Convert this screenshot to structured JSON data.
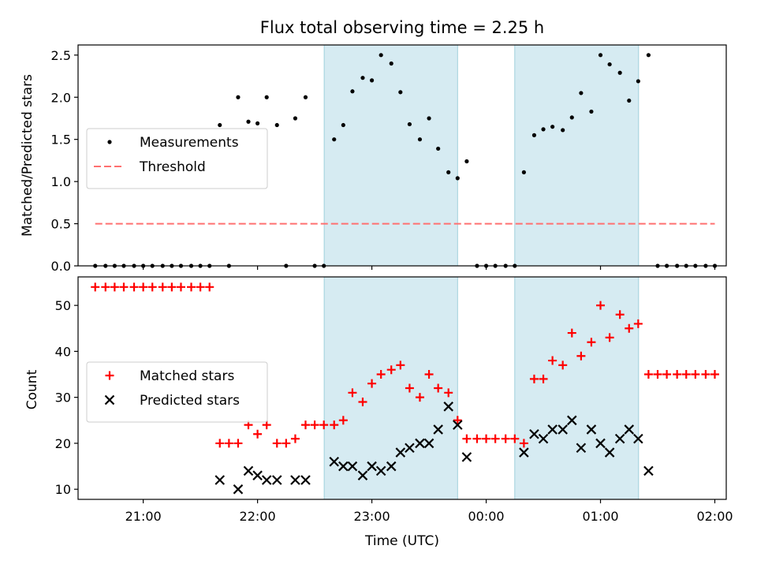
{
  "chart_data": {
    "title": "Flux total observing time = 2.25 h",
    "xlabel": "Time (UTC)",
    "x_unit": "UTC time, hours after 00:00 of the first night (values above 24 are the following day)",
    "xlim": [
      20.43,
      26.1
    ],
    "x_ticks": [
      {
        "value": 21,
        "label": "21:00"
      },
      {
        "value": 22,
        "label": "22:00"
      },
      {
        "value": 23,
        "label": "23:00"
      },
      {
        "value": 24,
        "label": "00:00"
      },
      {
        "value": 25,
        "label": "01:00"
      },
      {
        "value": 26,
        "label": "02:00"
      }
    ],
    "shaded_intervals": [
      {
        "start": 22.583,
        "end": 23.75,
        "color": "#add8e6"
      },
      {
        "start": 24.25,
        "end": 25.333,
        "color": "#add8e6"
      }
    ],
    "panels": [
      {
        "type": "scatter",
        "ylabel": "Matched/Predicted stars",
        "ylim": [
          0,
          2.62
        ],
        "y_ticks": [
          "0.0",
          "0.5",
          "1.0",
          "1.5",
          "2.0",
          "2.5"
        ],
        "legend_position": "center-left",
        "series": [
          {
            "name": "Measurements",
            "marker": "dot",
            "color": "#000000",
            "points": [
              [
                20.58,
                0
              ],
              [
                20.67,
                0
              ],
              [
                20.75,
                0
              ],
              [
                20.83,
                0
              ],
              [
                20.92,
                0
              ],
              [
                21.0,
                0
              ],
              [
                21.08,
                0
              ],
              [
                21.17,
                0
              ],
              [
                21.25,
                0
              ],
              [
                21.33,
                0
              ],
              [
                21.42,
                0
              ],
              [
                21.5,
                0
              ],
              [
                21.58,
                0
              ],
              [
                21.67,
                1.67
              ],
              [
                21.75,
                0
              ],
              [
                21.83,
                2.0
              ],
              [
                21.92,
                1.71
              ],
              [
                22.0,
                1.69
              ],
              [
                22.08,
                2.0
              ],
              [
                22.17,
                1.67
              ],
              [
                22.25,
                0
              ],
              [
                22.33,
                1.75
              ],
              [
                22.42,
                2.0
              ],
              [
                22.5,
                0
              ],
              [
                22.58,
                0
              ],
              [
                22.67,
                1.5
              ],
              [
                22.75,
                1.67
              ],
              [
                22.83,
                2.07
              ],
              [
                22.92,
                2.23
              ],
              [
                23.0,
                2.2
              ],
              [
                23.08,
                2.5
              ],
              [
                23.17,
                2.4
              ],
              [
                23.25,
                2.06
              ],
              [
                23.33,
                1.68
              ],
              [
                23.42,
                1.5
              ],
              [
                23.5,
                1.75
              ],
              [
                23.58,
                1.39
              ],
              [
                23.67,
                1.11
              ],
              [
                23.75,
                1.04
              ],
              [
                23.83,
                1.24
              ],
              [
                23.92,
                0
              ],
              [
                24.0,
                0
              ],
              [
                24.08,
                0
              ],
              [
                24.17,
                0
              ],
              [
                24.25,
                0
              ],
              [
                24.33,
                1.11
              ],
              [
                24.42,
                1.55
              ],
              [
                24.5,
                1.62
              ],
              [
                24.58,
                1.65
              ],
              [
                24.67,
                1.61
              ],
              [
                24.75,
                1.76
              ],
              [
                24.83,
                2.05
              ],
              [
                24.92,
                1.83
              ],
              [
                25.0,
                2.5
              ],
              [
                25.08,
                2.39
              ],
              [
                25.17,
                2.29
              ],
              [
                25.25,
                1.96
              ],
              [
                25.33,
                2.19
              ],
              [
                25.42,
                2.5
              ],
              [
                25.5,
                0
              ],
              [
                25.58,
                0
              ],
              [
                25.67,
                0
              ],
              [
                25.75,
                0
              ],
              [
                25.83,
                0
              ],
              [
                25.92,
                0
              ],
              [
                26.0,
                0
              ]
            ]
          },
          {
            "name": "Threshold",
            "type": "line",
            "style": "dashed",
            "color": "#ff7070",
            "points": [
              [
                20.58,
                0.5
              ],
              [
                26.0,
                0.5
              ]
            ]
          }
        ]
      },
      {
        "type": "scatter",
        "ylabel": "Count",
        "ylim": [
          7.8,
          56.2
        ],
        "y_ticks": [
          "10",
          "20",
          "30",
          "40",
          "50"
        ],
        "legend_position": "center-left",
        "series": [
          {
            "name": "Matched stars",
            "marker": "plus",
            "color": "#ff0000",
            "points": [
              [
                20.58,
                54
              ],
              [
                20.67,
                54
              ],
              [
                20.75,
                54
              ],
              [
                20.83,
                54
              ],
              [
                20.92,
                54
              ],
              [
                21.0,
                54
              ],
              [
                21.08,
                54
              ],
              [
                21.17,
                54
              ],
              [
                21.25,
                54
              ],
              [
                21.33,
                54
              ],
              [
                21.42,
                54
              ],
              [
                21.5,
                54
              ],
              [
                21.58,
                54
              ],
              [
                21.67,
                20
              ],
              [
                21.75,
                20
              ],
              [
                21.83,
                20
              ],
              [
                21.92,
                24
              ],
              [
                22.0,
                22
              ],
              [
                22.08,
                24
              ],
              [
                22.17,
                20
              ],
              [
                22.25,
                20
              ],
              [
                22.33,
                21
              ],
              [
                22.42,
                24
              ],
              [
                22.5,
                24
              ],
              [
                22.58,
                24
              ],
              [
                22.67,
                24
              ],
              [
                22.75,
                25
              ],
              [
                22.83,
                31
              ],
              [
                22.92,
                29
              ],
              [
                23.0,
                33
              ],
              [
                23.08,
                35
              ],
              [
                23.17,
                36
              ],
              [
                23.25,
                37
              ],
              [
                23.33,
                32
              ],
              [
                23.42,
                30
              ],
              [
                23.5,
                35
              ],
              [
                23.58,
                32
              ],
              [
                23.67,
                31
              ],
              [
                23.75,
                25
              ],
              [
                23.83,
                21
              ],
              [
                23.92,
                21
              ],
              [
                24.0,
                21
              ],
              [
                24.08,
                21
              ],
              [
                24.17,
                21
              ],
              [
                24.25,
                21
              ],
              [
                24.33,
                20
              ],
              [
                24.42,
                34
              ],
              [
                24.5,
                34
              ],
              [
                24.58,
                38
              ],
              [
                24.67,
                37
              ],
              [
                24.75,
                44
              ],
              [
                24.83,
                39
              ],
              [
                24.92,
                42
              ],
              [
                25.0,
                50
              ],
              [
                25.08,
                43
              ],
              [
                25.17,
                48
              ],
              [
                25.25,
                45
              ],
              [
                25.33,
                46
              ],
              [
                25.42,
                35
              ],
              [
                25.5,
                35
              ],
              [
                25.58,
                35
              ],
              [
                25.67,
                35
              ],
              [
                25.75,
                35
              ],
              [
                25.83,
                35
              ],
              [
                25.92,
                35
              ],
              [
                26.0,
                35
              ]
            ]
          },
          {
            "name": "Predicted stars",
            "marker": "x",
            "color": "#000000",
            "points": [
              [
                21.67,
                12
              ],
              [
                21.83,
                10
              ],
              [
                21.92,
                14
              ],
              [
                22.0,
                13
              ],
              [
                22.08,
                12
              ],
              [
                22.17,
                12
              ],
              [
                22.33,
                12
              ],
              [
                22.42,
                12
              ],
              [
                22.67,
                16
              ],
              [
                22.75,
                15
              ],
              [
                22.83,
                15
              ],
              [
                22.92,
                13
              ],
              [
                23.0,
                15
              ],
              [
                23.08,
                14
              ],
              [
                23.17,
                15
              ],
              [
                23.25,
                18
              ],
              [
                23.33,
                19
              ],
              [
                23.42,
                20
              ],
              [
                23.5,
                20
              ],
              [
                23.58,
                23
              ],
              [
                23.67,
                28
              ],
              [
                23.75,
                24
              ],
              [
                23.83,
                17
              ],
              [
                24.33,
                18
              ],
              [
                24.42,
                22
              ],
              [
                24.5,
                21
              ],
              [
                24.58,
                23
              ],
              [
                24.67,
                23
              ],
              [
                24.75,
                25
              ],
              [
                24.83,
                19
              ],
              [
                24.92,
                23
              ],
              [
                25.0,
                20
              ],
              [
                25.08,
                18
              ],
              [
                25.17,
                21
              ],
              [
                25.25,
                23
              ],
              [
                25.33,
                21
              ],
              [
                25.42,
                14
              ]
            ]
          }
        ]
      }
    ]
  }
}
